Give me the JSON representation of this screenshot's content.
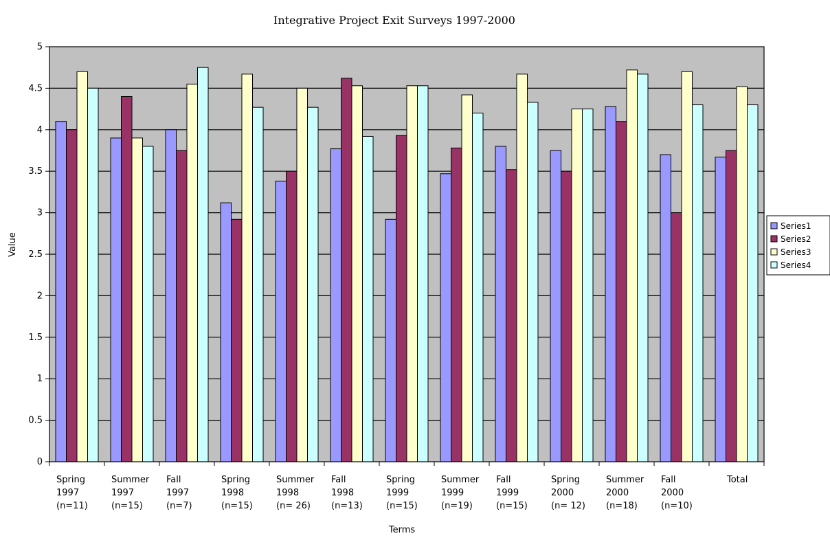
{
  "chart_data": {
    "type": "bar",
    "title": "Integrative Project Exit Surveys 1997-2000",
    "xlabel": "Terms",
    "ylabel": "Value",
    "ylim": [
      0,
      5
    ],
    "yticks": [
      "0",
      "0.5",
      "1",
      "1.5",
      "2",
      "2.5",
      "3",
      "3.5",
      "4",
      "4.5",
      "5"
    ],
    "grid": true,
    "legend_position": "right",
    "categories": [
      [
        "Spring",
        "1997",
        "(n=11)"
      ],
      [
        "Summer",
        "1997",
        "(n=15)"
      ],
      [
        "Fall",
        "1997",
        "(n=7)"
      ],
      [
        "Spring",
        "1998",
        "(n=15)"
      ],
      [
        "Summer",
        "1998",
        "(n= 26)"
      ],
      [
        "Fall",
        "1998",
        "(n=13)"
      ],
      [
        "Spring",
        "1999",
        "(n=15)"
      ],
      [
        "Summer",
        "1999",
        "(n=19)"
      ],
      [
        "Fall",
        "1999",
        "(n=15)"
      ],
      [
        "Spring",
        "2000",
        "(n= 12)"
      ],
      [
        "Summer",
        "2000",
        "(n=18)"
      ],
      [
        "Fall",
        "2000",
        "(n=10)"
      ],
      [
        "Total"
      ]
    ],
    "series": [
      {
        "name": "Series1",
        "color": "#9999ff",
        "values": [
          4.1,
          3.9,
          4.0,
          3.12,
          3.38,
          3.77,
          2.92,
          3.47,
          3.8,
          3.75,
          4.28,
          3.7,
          3.67
        ]
      },
      {
        "name": "Series2",
        "color": "#993366",
        "values": [
          4.0,
          4.4,
          3.75,
          2.92,
          3.5,
          4.62,
          3.93,
          3.78,
          3.52,
          3.5,
          4.1,
          3.0,
          3.75
        ]
      },
      {
        "name": "Series3",
        "color": "#ffffcc",
        "values": [
          4.7,
          3.9,
          4.55,
          4.67,
          4.5,
          4.53,
          4.53,
          4.42,
          4.67,
          4.25,
          4.72,
          4.7,
          4.52
        ]
      },
      {
        "name": "Series4",
        "color": "#ccffff",
        "values": [
          4.5,
          3.8,
          4.75,
          4.27,
          4.27,
          3.92,
          4.53,
          4.2,
          4.33,
          4.25,
          4.67,
          4.3,
          4.3
        ]
      }
    ],
    "plot_background": "#c0c0c0"
  }
}
